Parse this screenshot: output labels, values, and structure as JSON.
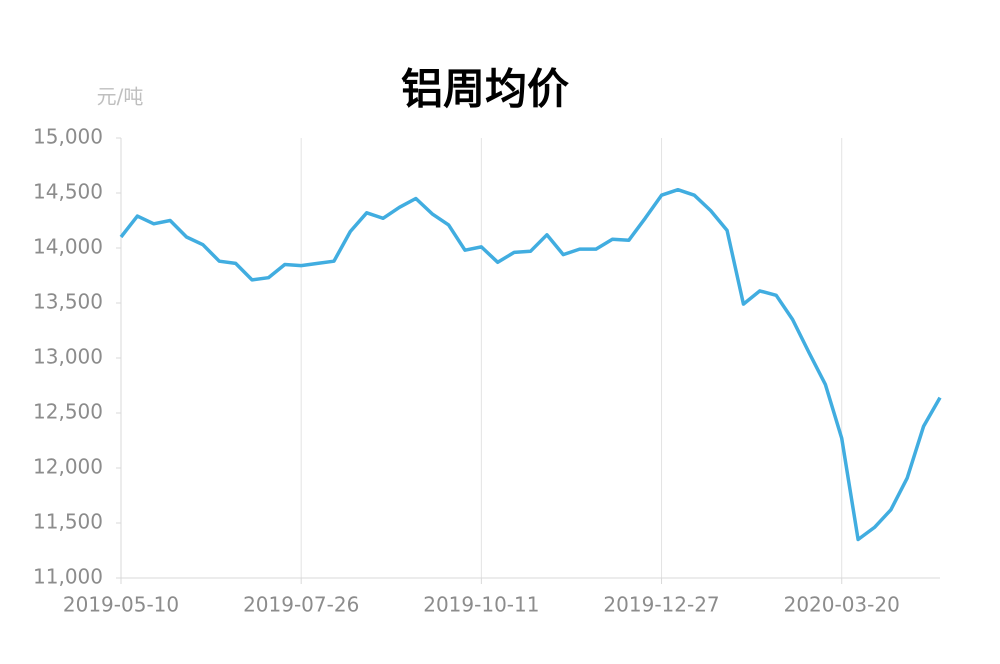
{
  "chart_data": {
    "type": "line",
    "title": "铝周均价",
    "y_unit": "元/吨",
    "categories": [
      "2019-05-10",
      null,
      null,
      null,
      null,
      null,
      null,
      null,
      null,
      null,
      null,
      "2019-07-26",
      null,
      null,
      null,
      null,
      null,
      null,
      null,
      null,
      null,
      null,
      "2019-10-11",
      null,
      null,
      null,
      null,
      null,
      null,
      null,
      null,
      null,
      null,
      "2019-12-27",
      null,
      null,
      null,
      null,
      null,
      null,
      null,
      null,
      null,
      null,
      "2020-03-20",
      null,
      null,
      null,
      null,
      null,
      null
    ],
    "series": [
      {
        "color": "#41ade0",
        "values": [
          14100,
          14290,
          14220,
          14250,
          14100,
          14030,
          13880,
          13860,
          13710,
          13730,
          13850,
          13840,
          13860,
          13880,
          14150,
          14320,
          14270,
          14370,
          14450,
          14310,
          14210,
          13980,
          14010,
          13870,
          13960,
          13970,
          14120,
          13940,
          13990,
          13990,
          14080,
          14070,
          14270,
          14480,
          14530,
          14480,
          14340,
          14160,
          13490,
          13610,
          13570,
          13350,
          13050,
          12760,
          12270,
          11350,
          11460,
          11620,
          11910,
          12380,
          12640
        ]
      }
    ],
    "ylim": [
      11000,
      15000
    ],
    "yticks": [
      {
        "value": 11000,
        "label": "11,000"
      },
      {
        "value": 11500,
        "label": "11,500"
      },
      {
        "value": 12000,
        "label": "12,000"
      },
      {
        "value": 12500,
        "label": "12,500"
      },
      {
        "value": 13000,
        "label": "13,000"
      },
      {
        "value": 13500,
        "label": "13,500"
      },
      {
        "value": 14000,
        "label": "14,000"
      },
      {
        "value": 14500,
        "label": "14,500"
      },
      {
        "value": 15000,
        "label": "15,000"
      }
    ],
    "grid": "x"
  }
}
